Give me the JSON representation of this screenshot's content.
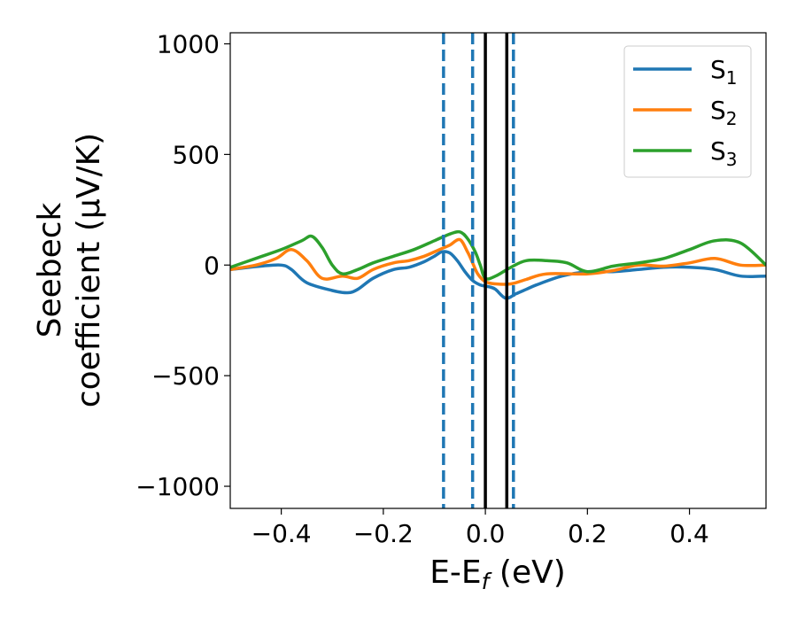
{
  "chart_data": {
    "type": "line",
    "xlabel": {
      "base": "E-E",
      "sub": "f",
      "tail": " (eV)"
    },
    "ylabel": {
      "line1": "Seebeck",
      "line2": "coefficient  (μV/K)"
    },
    "xlim": [
      -0.5,
      0.55
    ],
    "ylim": [
      -1100,
      1050
    ],
    "xticks": [
      -0.4,
      -0.2,
      0.0,
      0.2,
      0.4
    ],
    "xtick_labels": [
      "−0.4",
      "−0.2",
      "0.0",
      "0.2",
      "0.4"
    ],
    "yticks": [
      1000,
      500,
      0,
      -500,
      -1000
    ],
    "ytick_labels": [
      "1000",
      "500",
      "0",
      "−500",
      "−1000"
    ],
    "grid": false,
    "legend_position": "top-right",
    "series": [
      {
        "name": "S",
        "name_sub": "1",
        "color": "#1f77b4",
        "x": [
          -0.5,
          -0.44,
          -0.4,
          -0.38,
          -0.35,
          -0.3,
          -0.27,
          -0.25,
          -0.22,
          -0.18,
          -0.15,
          -0.12,
          -0.1,
          -0.085,
          -0.07,
          -0.055,
          -0.04,
          -0.025,
          -0.01,
          0.0,
          0.01,
          0.02,
          0.04,
          0.06,
          0.08,
          0.1,
          0.15,
          0.2,
          0.25,
          0.3,
          0.35,
          0.4,
          0.45,
          0.5,
          0.55
        ],
        "y": [
          -20,
          -5,
          0,
          -20,
          -80,
          -115,
          -125,
          -110,
          -60,
          -20,
          -10,
          15,
          40,
          60,
          55,
          20,
          -30,
          -70,
          -90,
          -95,
          -100,
          -110,
          -150,
          -130,
          -110,
          -90,
          -50,
          -30,
          -30,
          -20,
          -10,
          -10,
          -20,
          -50,
          -50
        ]
      },
      {
        "name": "S",
        "name_sub": "2",
        "color": "#ff7f0e",
        "x": [
          -0.5,
          -0.45,
          -0.41,
          -0.38,
          -0.35,
          -0.32,
          -0.28,
          -0.25,
          -0.22,
          -0.18,
          -0.15,
          -0.12,
          -0.09,
          -0.07,
          -0.05,
          -0.035,
          -0.025,
          -0.015,
          0.0,
          0.02,
          0.05,
          0.08,
          0.12,
          0.2,
          0.25,
          0.3,
          0.35,
          0.4,
          0.45,
          0.5,
          0.55
        ],
        "y": [
          -20,
          0,
          30,
          70,
          20,
          -60,
          -50,
          -60,
          -20,
          10,
          20,
          40,
          70,
          90,
          115,
          60,
          10,
          -40,
          -75,
          -85,
          -85,
          -65,
          -40,
          -40,
          -25,
          0,
          -5,
          10,
          30,
          0,
          0
        ]
      },
      {
        "name": "S",
        "name_sub": "3",
        "color": "#2ca02c",
        "x": [
          -0.5,
          -0.45,
          -0.4,
          -0.36,
          -0.34,
          -0.32,
          -0.3,
          -0.28,
          -0.25,
          -0.22,
          -0.18,
          -0.14,
          -0.1,
          -0.07,
          -0.05,
          -0.035,
          -0.02,
          -0.01,
          0.0,
          0.02,
          0.05,
          0.08,
          0.12,
          0.16,
          0.2,
          0.25,
          0.3,
          0.35,
          0.4,
          0.45,
          0.5,
          0.55
        ],
        "y": [
          -10,
          30,
          70,
          110,
          130,
          80,
          0,
          -40,
          -20,
          10,
          40,
          70,
          110,
          140,
          150,
          120,
          60,
          0,
          -60,
          -50,
          -10,
          20,
          20,
          10,
          -30,
          -5,
          10,
          30,
          70,
          110,
          100,
          0
        ]
      }
    ],
    "vlines": [
      {
        "x": -0.082,
        "color": "#1f77b4",
        "style": "dashed"
      },
      {
        "x": -0.025,
        "color": "#1f77b4",
        "style": "dashed"
      },
      {
        "x": 0.055,
        "color": "#1f77b4",
        "style": "dashed"
      },
      {
        "x": 0.0,
        "color": "#000000",
        "style": "solid"
      },
      {
        "x": 0.042,
        "color": "#000000",
        "style": "solid"
      }
    ]
  }
}
